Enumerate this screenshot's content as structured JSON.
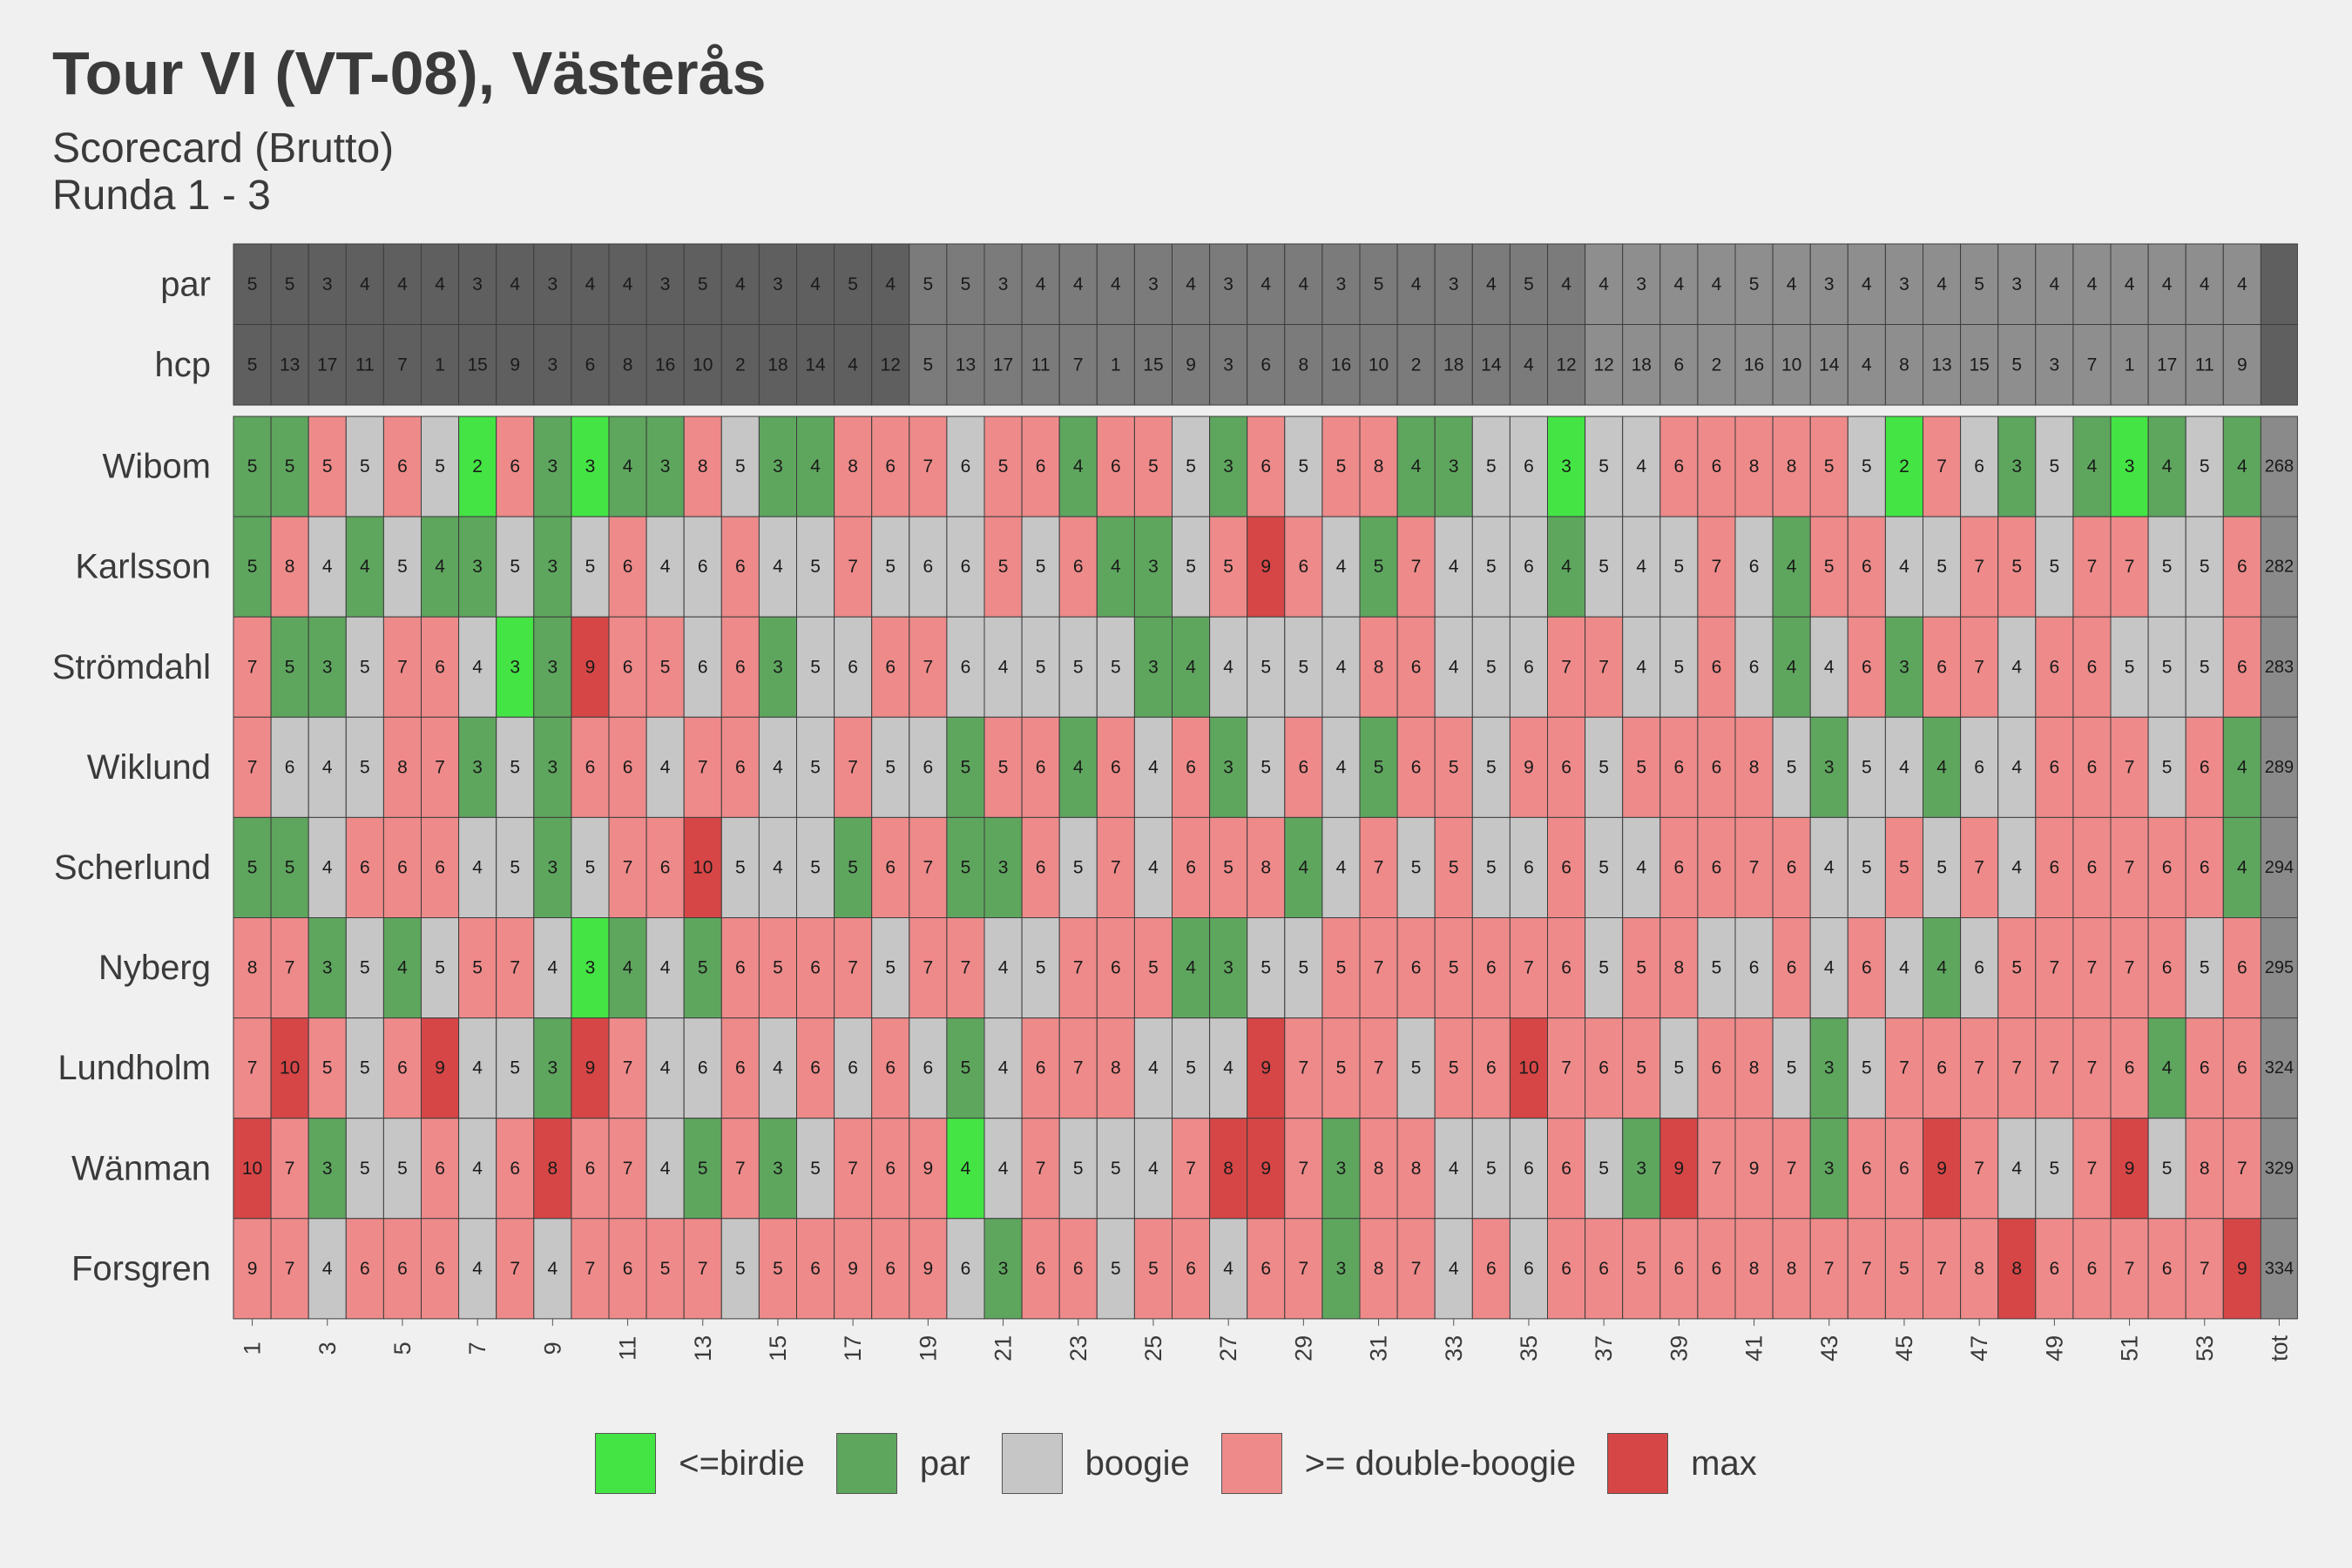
{
  "chart_data": {
    "type": "heatmap",
    "title": "Tour VI (VT-08), Västerås",
    "subtitle_lines": [
      "Scorecard (Brutto)",
      "Runda 1 - 3"
    ],
    "header_rows": [
      {
        "label": "par",
        "values": [
          5,
          5,
          3,
          4,
          4,
          4,
          3,
          4,
          3,
          4,
          4,
          3,
          5,
          4,
          3,
          4,
          5,
          4,
          5,
          5,
          3,
          4,
          4,
          4,
          3,
          4,
          3,
          4,
          4,
          3,
          5,
          4,
          3,
          4,
          5,
          4,
          4,
          3,
          4,
          4,
          5,
          4,
          3,
          4,
          3,
          4,
          5,
          3,
          4,
          4,
          4,
          4,
          4,
          4
        ]
      },
      {
        "label": "hcp",
        "values": [
          5,
          13,
          17,
          11,
          7,
          1,
          15,
          9,
          3,
          6,
          8,
          16,
          10,
          2,
          18,
          14,
          4,
          12,
          5,
          13,
          17,
          11,
          7,
          1,
          15,
          9,
          3,
          6,
          8,
          16,
          10,
          2,
          18,
          14,
          4,
          12,
          12,
          18,
          6,
          2,
          16,
          10,
          14,
          4,
          8,
          13,
          15,
          5,
          3,
          7,
          1,
          17,
          11,
          9
        ]
      }
    ],
    "header_colors": [
      "#5f5f5f",
      "#7b7b7b",
      "#8e8e8e"
    ],
    "x_tick_labels": [
      "1",
      "3",
      "5",
      "7",
      "9",
      "11",
      "13",
      "15",
      "17",
      "19",
      "21",
      "23",
      "25",
      "27",
      "29",
      "31",
      "33",
      "35",
      "37",
      "39",
      "41",
      "43",
      "45",
      "47",
      "49",
      "51",
      "53"
    ],
    "total_label": "tot",
    "players": [
      {
        "name": "Wibom",
        "total": 268,
        "scores": [
          5,
          5,
          5,
          5,
          6,
          5,
          2,
          6,
          3,
          3,
          4,
          3,
          8,
          5,
          3,
          4,
          8,
          6,
          7,
          6,
          5,
          6,
          4,
          6,
          5,
          5,
          3,
          6,
          5,
          5,
          8,
          4,
          3,
          5,
          6,
          3,
          5,
          4,
          6,
          6,
          8,
          8,
          5,
          5,
          2,
          7,
          6,
          3,
          5,
          4,
          3,
          4,
          5,
          4
        ]
      },
      {
        "name": "Karlsson",
        "total": 282,
        "scores": [
          5,
          8,
          4,
          4,
          5,
          4,
          3,
          5,
          3,
          5,
          6,
          4,
          6,
          6,
          4,
          5,
          7,
          5,
          6,
          6,
          5,
          5,
          6,
          4,
          3,
          5,
          5,
          9,
          6,
          4,
          5,
          7,
          4,
          5,
          6,
          4,
          5,
          4,
          5,
          7,
          6,
          4,
          5,
          6,
          4,
          5,
          7,
          5,
          5,
          7,
          7,
          5,
          5,
          6
        ]
      },
      {
        "name": "Strömdahl",
        "total": 283,
        "scores": [
          7,
          5,
          3,
          5,
          7,
          6,
          4,
          3,
          3,
          9,
          6,
          5,
          6,
          6,
          3,
          5,
          6,
          6,
          7,
          6,
          4,
          5,
          5,
          5,
          3,
          4,
          4,
          5,
          5,
          4,
          8,
          6,
          4,
          5,
          6,
          7,
          7,
          4,
          5,
          6,
          6,
          4,
          4,
          6,
          3,
          6,
          7,
          4,
          6,
          6,
          5,
          5,
          5,
          6
        ]
      },
      {
        "name": "Wiklund",
        "total": 289,
        "scores": [
          7,
          6,
          4,
          5,
          8,
          7,
          3,
          5,
          3,
          6,
          6,
          4,
          7,
          6,
          4,
          5,
          7,
          5,
          6,
          5,
          5,
          6,
          4,
          6,
          4,
          6,
          3,
          5,
          6,
          4,
          5,
          6,
          5,
          5,
          9,
          6,
          5,
          5,
          6,
          6,
          8,
          5,
          3,
          5,
          4,
          4,
          6,
          4,
          6,
          6,
          7,
          5,
          6,
          4
        ]
      },
      {
        "name": "Scherlund",
        "total": 294,
        "scores": [
          5,
          5,
          4,
          6,
          6,
          6,
          4,
          5,
          3,
          5,
          7,
          6,
          10,
          5,
          4,
          5,
          5,
          6,
          7,
          5,
          3,
          6,
          5,
          7,
          4,
          6,
          5,
          8,
          4,
          4,
          7,
          5,
          5,
          5,
          6,
          6,
          5,
          4,
          6,
          6,
          7,
          6,
          4,
          5,
          5,
          5,
          7,
          4,
          6,
          6,
          7,
          6,
          6,
          4
        ]
      },
      {
        "name": "Nyberg",
        "total": 295,
        "scores": [
          8,
          7,
          3,
          5,
          4,
          5,
          5,
          7,
          4,
          3,
          4,
          4,
          5,
          6,
          5,
          6,
          7,
          5,
          7,
          7,
          4,
          5,
          7,
          6,
          5,
          4,
          3,
          5,
          5,
          5,
          7,
          6,
          5,
          6,
          7,
          6,
          5,
          5,
          8,
          5,
          6,
          6,
          4,
          6,
          4,
          4,
          6,
          5,
          7,
          7,
          7,
          6,
          5,
          6
        ]
      },
      {
        "name": "Lundholm",
        "total": 324,
        "scores": [
          7,
          10,
          5,
          5,
          6,
          9,
          4,
          5,
          3,
          9,
          7,
          4,
          6,
          6,
          4,
          6,
          6,
          6,
          6,
          5,
          4,
          6,
          7,
          8,
          4,
          5,
          4,
          9,
          7,
          5,
          7,
          5,
          5,
          6,
          10,
          7,
          6,
          5,
          5,
          6,
          8,
          5,
          3,
          5,
          7,
          6,
          7,
          7,
          7,
          7,
          6,
          4,
          6,
          6
        ]
      },
      {
        "name": "Wänman",
        "total": 329,
        "scores": [
          10,
          7,
          3,
          5,
          5,
          6,
          4,
          6,
          8,
          6,
          7,
          4,
          5,
          7,
          3,
          5,
          7,
          6,
          9,
          4,
          4,
          7,
          5,
          5,
          4,
          7,
          8,
          9,
          7,
          3,
          8,
          8,
          4,
          5,
          6,
          6,
          5,
          3,
          9,
          7,
          9,
          7,
          3,
          6,
          6,
          9,
          7,
          4,
          5,
          7,
          9,
          5,
          8,
          7
        ]
      },
      {
        "name": "Forsgren",
        "total": 334,
        "scores": [
          9,
          7,
          4,
          6,
          6,
          6,
          4,
          7,
          4,
          7,
          6,
          5,
          7,
          5,
          5,
          6,
          9,
          6,
          9,
          6,
          3,
          6,
          6,
          5,
          5,
          6,
          4,
          6,
          7,
          3,
          8,
          7,
          4,
          6,
          6,
          6,
          6,
          5,
          6,
          6,
          8,
          8,
          7,
          7,
          5,
          7,
          8,
          8,
          6,
          6,
          7,
          6,
          7,
          9
        ]
      }
    ],
    "legend": [
      {
        "label": "<=birdie",
        "color": "#44e444"
      },
      {
        "label": "par",
        "color": "#5ea65e"
      },
      {
        "label": "boogie",
        "color": "#c6c6c6"
      },
      {
        "label": ">= double-boogie",
        "color": "#ee8a8a"
      },
      {
        "label": "max",
        "color": "#d64646"
      }
    ],
    "total_column_color": "#8a8a8a",
    "text_color": "#3a3a3a"
  }
}
